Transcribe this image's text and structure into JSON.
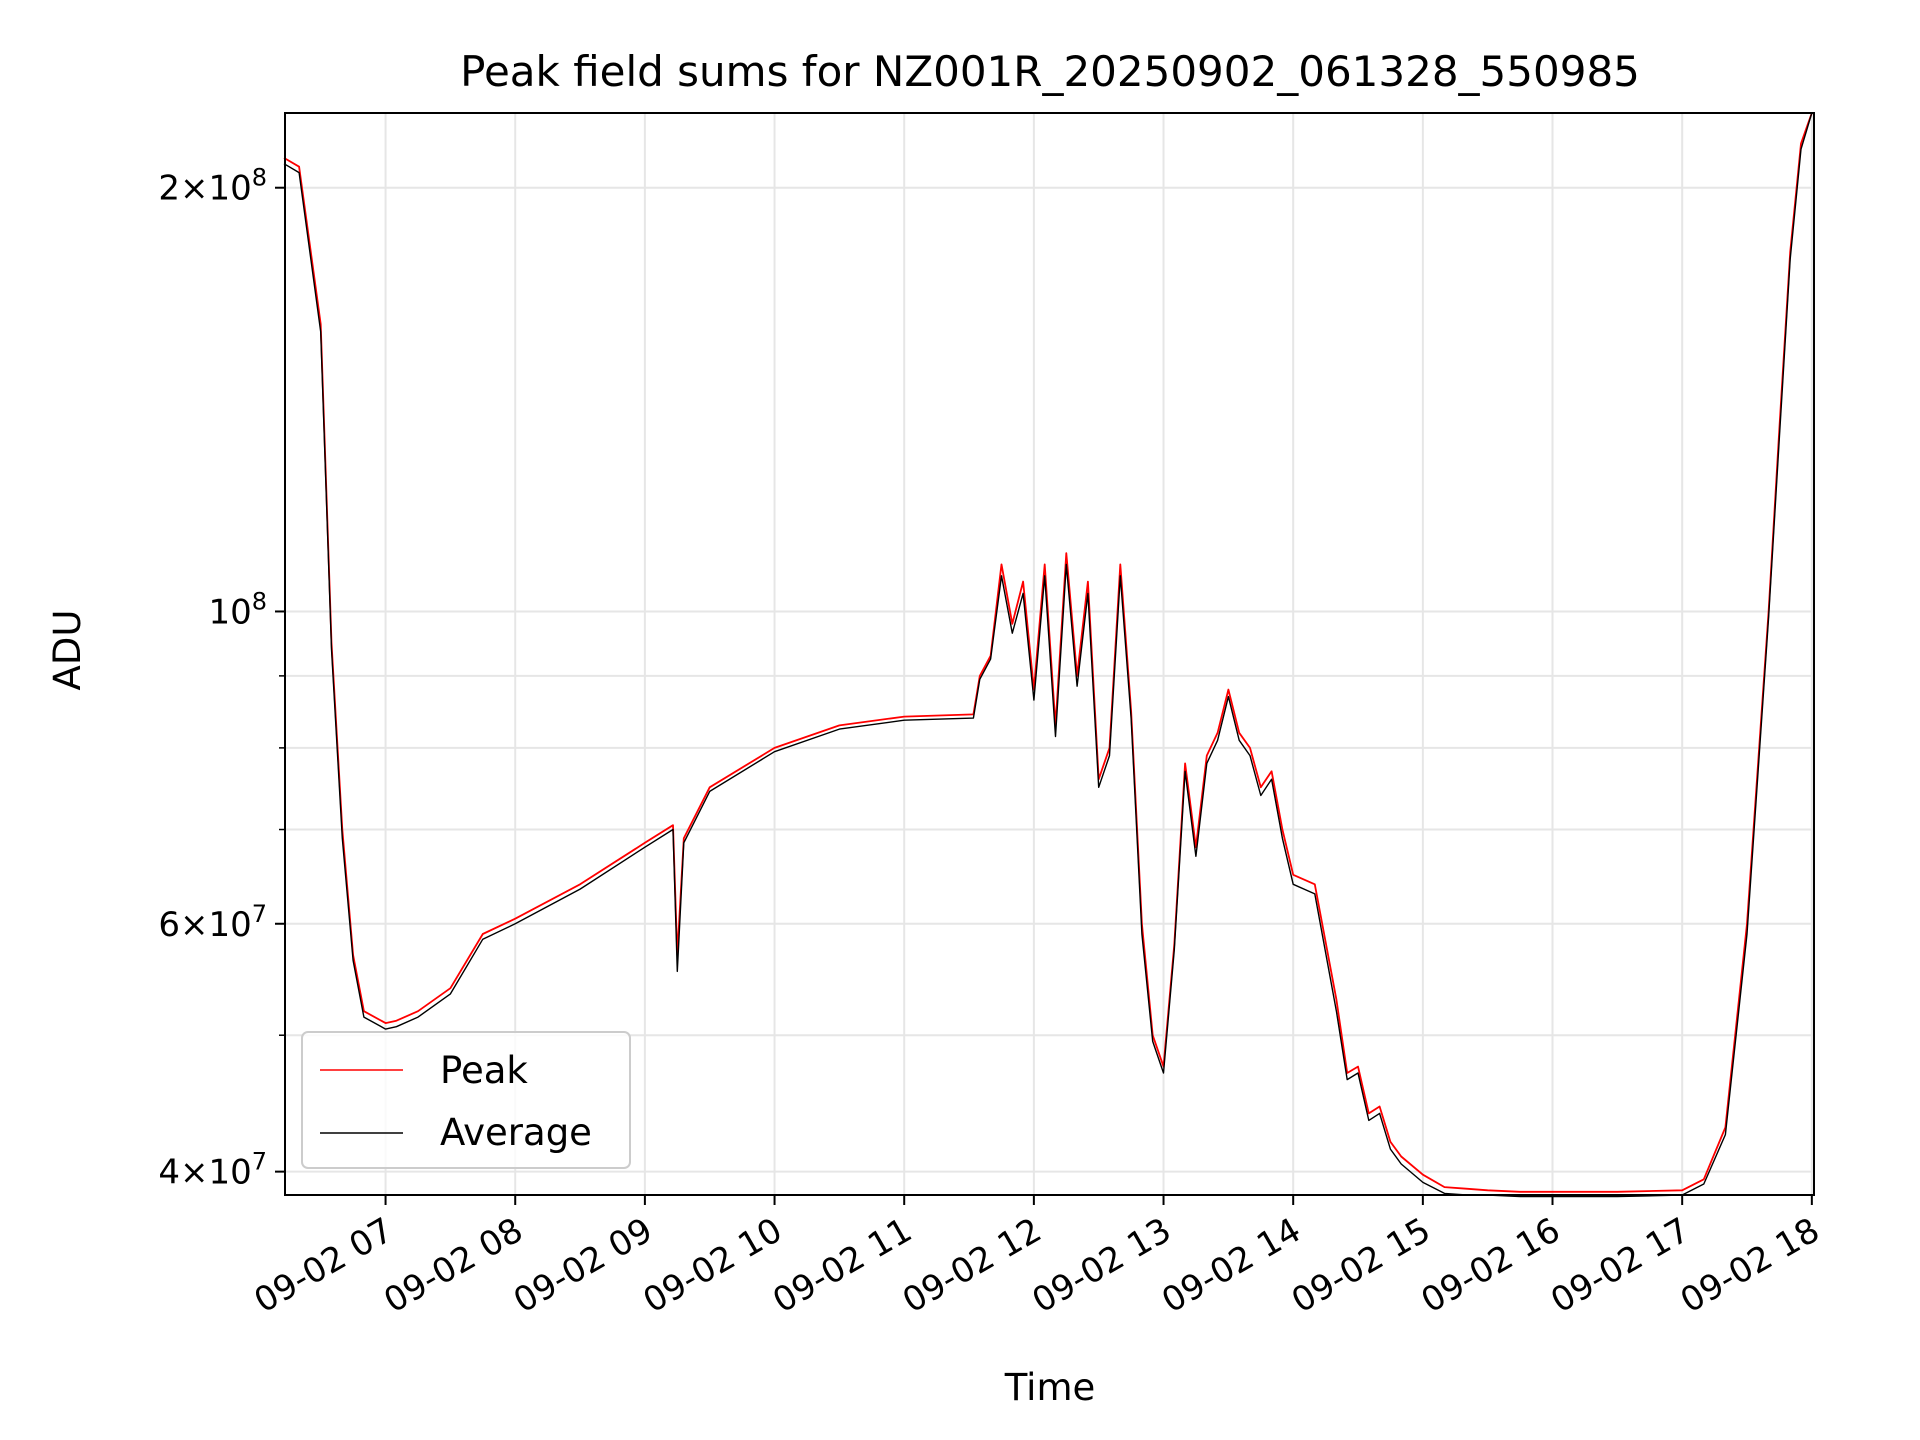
{
  "chart_data": {
    "type": "line",
    "title": "Peak field sums for NZ001R_20250902_061328_550985",
    "xlabel": "Time",
    "ylabel": "ADU",
    "yscale": "log",
    "ylim": [
      38500000,
      226000000
    ],
    "xlim": [
      "2025-09-02 06:13:28",
      "2025-09-02 18:01:00"
    ],
    "grid": true,
    "legend_position": "lower-left",
    "x_ticks": [
      {
        "value": "2025-09-02 07:00",
        "label": "09-02 07"
      },
      {
        "value": "2025-09-02 08:00",
        "label": "09-02 08"
      },
      {
        "value": "2025-09-02 09:00",
        "label": "09-02 09"
      },
      {
        "value": "2025-09-02 10:00",
        "label": "09-02 10"
      },
      {
        "value": "2025-09-02 11:00",
        "label": "09-02 11"
      },
      {
        "value": "2025-09-02 12:00",
        "label": "09-02 12"
      },
      {
        "value": "2025-09-02 13:00",
        "label": "09-02 13"
      },
      {
        "value": "2025-09-02 14:00",
        "label": "09-02 14"
      },
      {
        "value": "2025-09-02 15:00",
        "label": "09-02 15"
      },
      {
        "value": "2025-09-02 16:00",
        "label": "09-02 16"
      },
      {
        "value": "2025-09-02 17:00",
        "label": "09-02 17"
      },
      {
        "value": "2025-09-02 18:00",
        "label": "09-02 18"
      }
    ],
    "y_ticks": [
      {
        "value": 40000000,
        "mant": "4",
        "exp": "7"
      },
      {
        "value": 60000000,
        "mant": "6",
        "exp": "7"
      },
      {
        "value": 100000000,
        "mant": "",
        "exp": "8"
      },
      {
        "value": 200000000,
        "mant": "2",
        "exp": "8"
      }
    ],
    "y_minor_ticks": [
      50000000,
      70000000,
      80000000,
      90000000
    ],
    "series": [
      {
        "name": "Peak",
        "color": "#ff0000",
        "x": [
          "2025-09-02 06:13",
          "2025-09-02 06:20",
          "2025-09-02 06:30",
          "2025-09-02 06:35",
          "2025-09-02 06:40",
          "2025-09-02 06:45",
          "2025-09-02 06:50",
          "2025-09-02 07:00",
          "2025-09-02 07:05",
          "2025-09-02 07:15",
          "2025-09-02 07:30",
          "2025-09-02 07:45",
          "2025-09-02 08:00",
          "2025-09-02 08:30",
          "2025-09-02 09:00",
          "2025-09-02 09:13",
          "2025-09-02 09:15",
          "2025-09-02 09:18",
          "2025-09-02 09:30",
          "2025-09-02 10:00",
          "2025-09-02 10:30",
          "2025-09-02 11:00",
          "2025-09-02 11:32",
          "2025-09-02 11:35",
          "2025-09-02 11:40",
          "2025-09-02 11:45",
          "2025-09-02 11:50",
          "2025-09-02 11:55",
          "2025-09-02 12:00",
          "2025-09-02 12:05",
          "2025-09-02 12:10",
          "2025-09-02 12:15",
          "2025-09-02 12:20",
          "2025-09-02 12:25",
          "2025-09-02 12:30",
          "2025-09-02 12:35",
          "2025-09-02 12:40",
          "2025-09-02 12:45",
          "2025-09-02 12:50",
          "2025-09-02 12:55",
          "2025-09-02 13:00",
          "2025-09-02 13:05",
          "2025-09-02 13:10",
          "2025-09-02 13:15",
          "2025-09-02 13:20",
          "2025-09-02 13:25",
          "2025-09-02 13:30",
          "2025-09-02 13:35",
          "2025-09-02 13:40",
          "2025-09-02 13:45",
          "2025-09-02 13:50",
          "2025-09-02 13:55",
          "2025-09-02 14:00",
          "2025-09-02 14:10",
          "2025-09-02 14:20",
          "2025-09-02 14:25",
          "2025-09-02 14:30",
          "2025-09-02 14:35",
          "2025-09-02 14:40",
          "2025-09-02 14:45",
          "2025-09-02 14:50",
          "2025-09-02 15:00",
          "2025-09-02 15:10",
          "2025-09-02 15:20",
          "2025-09-02 15:30",
          "2025-09-02 15:45",
          "2025-09-02 16:00",
          "2025-09-02 16:30",
          "2025-09-02 17:00",
          "2025-09-02 17:10",
          "2025-09-02 17:20",
          "2025-09-02 17:30",
          "2025-09-02 17:40",
          "2025-09-02 17:45",
          "2025-09-02 17:50",
          "2025-09-02 17:55",
          "2025-09-02 18:00"
        ],
        "values": [
          210000000,
          207000000,
          160000000,
          95000000,
          70000000,
          57000000,
          52000000,
          51000000,
          51200000,
          52000000,
          54000000,
          59000000,
          60500000,
          64000000,
          68500000,
          70500000,
          57000000,
          69000000,
          75000000,
          80000000,
          83000000,
          84200000,
          84500000,
          90000000,
          93000000,
          108000000,
          98000000,
          105000000,
          88000000,
          108000000,
          83000000,
          110000000,
          90000000,
          105000000,
          76000000,
          80000000,
          108000000,
          85000000,
          60000000,
          50000000,
          47500000,
          58000000,
          78000000,
          68000000,
          79000000,
          82000000,
          88000000,
          82000000,
          80000000,
          75000000,
          77000000,
          70000000,
          65000000,
          64000000,
          53000000,
          47000000,
          47500000,
          44000000,
          44500000,
          42000000,
          41000000,
          39800000,
          39000000,
          38900000,
          38800000,
          38700000,
          38700000,
          38700000,
          38800000,
          39500000,
          43000000,
          60000000,
          100000000,
          135000000,
          180000000,
          215000000,
          226000000
        ]
      },
      {
        "name": "Average",
        "color": "#000000",
        "x": [
          "2025-09-02 06:13",
          "2025-09-02 06:20",
          "2025-09-02 06:30",
          "2025-09-02 06:35",
          "2025-09-02 06:40",
          "2025-09-02 06:45",
          "2025-09-02 06:50",
          "2025-09-02 07:00",
          "2025-09-02 07:05",
          "2025-09-02 07:15",
          "2025-09-02 07:30",
          "2025-09-02 07:45",
          "2025-09-02 08:00",
          "2025-09-02 08:30",
          "2025-09-02 09:00",
          "2025-09-02 09:13",
          "2025-09-02 09:15",
          "2025-09-02 09:18",
          "2025-09-02 09:30",
          "2025-09-02 10:00",
          "2025-09-02 10:30",
          "2025-09-02 11:00",
          "2025-09-02 11:32",
          "2025-09-02 11:35",
          "2025-09-02 11:40",
          "2025-09-02 11:45",
          "2025-09-02 11:50",
          "2025-09-02 11:55",
          "2025-09-02 12:00",
          "2025-09-02 12:05",
          "2025-09-02 12:10",
          "2025-09-02 12:15",
          "2025-09-02 12:20",
          "2025-09-02 12:25",
          "2025-09-02 12:30",
          "2025-09-02 12:35",
          "2025-09-02 12:40",
          "2025-09-02 12:45",
          "2025-09-02 12:50",
          "2025-09-02 12:55",
          "2025-09-02 13:00",
          "2025-09-02 13:05",
          "2025-09-02 13:10",
          "2025-09-02 13:15",
          "2025-09-02 13:20",
          "2025-09-02 13:25",
          "2025-09-02 13:30",
          "2025-09-02 13:35",
          "2025-09-02 13:40",
          "2025-09-02 13:45",
          "2025-09-02 13:50",
          "2025-09-02 13:55",
          "2025-09-02 14:00",
          "2025-09-02 14:10",
          "2025-09-02 14:20",
          "2025-09-02 14:25",
          "2025-09-02 14:30",
          "2025-09-02 14:35",
          "2025-09-02 14:40",
          "2025-09-02 14:45",
          "2025-09-02 14:50",
          "2025-09-02 15:00",
          "2025-09-02 15:10",
          "2025-09-02 15:20",
          "2025-09-02 15:30",
          "2025-09-02 15:45",
          "2025-09-02 16:00",
          "2025-09-02 16:30",
          "2025-09-02 17:00",
          "2025-09-02 17:10",
          "2025-09-02 17:20",
          "2025-09-02 17:30",
          "2025-09-02 17:40",
          "2025-09-02 17:45",
          "2025-09-02 17:50",
          "2025-09-02 17:55",
          "2025-09-02 18:00"
        ],
        "values": [
          208000000,
          205000000,
          158000000,
          94000000,
          69000000,
          56500000,
          51500000,
          50500000,
          50700000,
          51500000,
          53500000,
          58500000,
          60000000,
          63500000,
          68000000,
          70000000,
          55500000,
          68500000,
          74500000,
          79500000,
          82500000,
          83700000,
          84000000,
          89500000,
          92500000,
          106000000,
          96500000,
          103000000,
          86500000,
          106000000,
          81500000,
          108000000,
          88500000,
          103000000,
          75000000,
          79000000,
          106000000,
          84000000,
          59000000,
          49500000,
          47000000,
          57500000,
          77000000,
          67000000,
          78000000,
          81000000,
          87000000,
          81000000,
          79000000,
          74000000,
          76000000,
          69000000,
          64000000,
          63000000,
          52000000,
          46500000,
          47000000,
          43500000,
          44000000,
          41500000,
          40500000,
          39300000,
          38600000,
          38500000,
          38500000,
          38400000,
          38400000,
          38400000,
          38500000,
          39200000,
          42500000,
          59000000,
          99000000,
          133000000,
          178000000,
          213000000,
          226000000
        ]
      }
    ]
  }
}
